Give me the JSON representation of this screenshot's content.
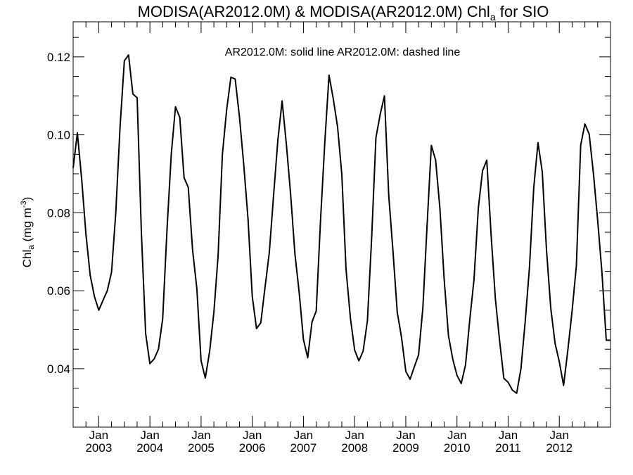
{
  "chart_data": {
    "type": "line",
    "title": {
      "prefix": "MODISA(AR2012.0M) & MODISA(AR2012.0M)  Chl",
      "sub": "a",
      "suffix": " for SIO"
    },
    "annotation": "AR2012.0M: solid line   AR2012.0M: dashed line",
    "ylabel": {
      "main": "Chl",
      "sub": "a",
      "unit_prefix": " (mg m",
      "unit_sup": "-3",
      "unit_suffix": ")"
    },
    "xlabel": "",
    "ylim": [
      0.025,
      0.129
    ],
    "xlim": [
      2002.5,
      2013.0
    ],
    "y_ticks": [
      0.04,
      0.06,
      0.08,
      0.1,
      0.12
    ],
    "y_tick_labels": [
      "0.04",
      "0.06",
      "0.08",
      "0.10",
      "0.12"
    ],
    "x_ticks": [
      2003,
      2004,
      2005,
      2006,
      2007,
      2008,
      2009,
      2010,
      2011,
      2012
    ],
    "x_tick_month": "Jan",
    "x_tick_years": [
      "2003",
      "2004",
      "2005",
      "2006",
      "2007",
      "2008",
      "2009",
      "2010",
      "2011",
      "2012"
    ],
    "grid": false,
    "series": [
      {
        "style": "solid",
        "x": [
          2002.5,
          2002.583,
          2002.667,
          2002.75,
          2002.833,
          2002.917,
          2003.0,
          2003.083,
          2003.167,
          2003.25,
          2003.333,
          2003.417,
          2003.5,
          2003.583,
          2003.667,
          2003.75,
          2003.833,
          2003.917,
          2004.0,
          2004.083,
          2004.167,
          2004.25,
          2004.333,
          2004.417,
          2004.5,
          2004.583,
          2004.667,
          2004.75,
          2004.833,
          2004.917,
          2005.0,
          2005.083,
          2005.167,
          2005.25,
          2005.333,
          2005.417,
          2005.5,
          2005.583,
          2005.667,
          2005.75,
          2005.833,
          2005.917,
          2006.0,
          2006.083,
          2006.167,
          2006.25,
          2006.333,
          2006.417,
          2006.5,
          2006.583,
          2006.667,
          2006.75,
          2006.833,
          2006.917,
          2007.0,
          2007.083,
          2007.167,
          2007.25,
          2007.333,
          2007.417,
          2007.5,
          2007.583,
          2007.667,
          2007.75,
          2007.833,
          2007.917,
          2008.0,
          2008.083,
          2008.167,
          2008.25,
          2008.333,
          2008.417,
          2008.5,
          2008.583,
          2008.667,
          2008.75,
          2008.833,
          2008.917,
          2009.0,
          2009.083,
          2009.167,
          2009.25,
          2009.333,
          2009.417,
          2009.5,
          2009.583,
          2009.667,
          2009.75,
          2009.833,
          2009.917,
          2010.0,
          2010.083,
          2010.167,
          2010.25,
          2010.333,
          2010.417,
          2010.5,
          2010.583,
          2010.667,
          2010.75,
          2010.833,
          2010.917,
          2011.0,
          2011.083,
          2011.167,
          2011.25,
          2011.333,
          2011.417,
          2011.5,
          2011.583,
          2011.667,
          2011.75,
          2011.833,
          2011.917,
          2012.0,
          2012.083,
          2012.167,
          2012.25,
          2012.333,
          2012.417,
          2012.5,
          2012.583,
          2012.667,
          2012.75,
          2012.833,
          2012.917,
          2013.0
        ],
        "values": [
          0.0915,
          0.1005,
          0.0885,
          0.0745,
          0.064,
          0.0585,
          0.055,
          0.0575,
          0.06,
          0.0648,
          0.08,
          0.102,
          0.119,
          0.1205,
          0.1105,
          0.1095,
          0.075,
          0.049,
          0.0413,
          0.0425,
          0.045,
          0.0528,
          0.0755,
          0.095,
          0.1072,
          0.1045,
          0.089,
          0.0865,
          0.0705,
          0.0605,
          0.042,
          0.0376,
          0.0445,
          0.0545,
          0.069,
          0.095,
          0.1065,
          0.1148,
          0.1143,
          0.1045,
          0.0925,
          0.0785,
          0.0585,
          0.0503,
          0.0518,
          0.061,
          0.0698,
          0.0845,
          0.0985,
          0.1087,
          0.0975,
          0.0848,
          0.0695,
          0.0595,
          0.0475,
          0.0428,
          0.052,
          0.0548,
          0.078,
          0.098,
          0.1153,
          0.1093,
          0.102,
          0.0898,
          0.0655,
          0.053,
          0.0448,
          0.042,
          0.0445,
          0.0523,
          0.0735,
          0.0993,
          0.1053,
          0.11,
          0.0845,
          0.07,
          0.0545,
          0.048,
          0.0393,
          0.0373,
          0.0405,
          0.0435,
          0.0555,
          0.077,
          0.0973,
          0.0935,
          0.081,
          0.063,
          0.0485,
          0.0425,
          0.0383,
          0.0362,
          0.041,
          0.0525,
          0.0628,
          0.0812,
          0.0908,
          0.0935,
          0.0745,
          0.058,
          0.0472,
          0.0375,
          0.0365,
          0.0345,
          0.0337,
          0.04,
          0.052,
          0.066,
          0.0865,
          0.098,
          0.0905,
          0.0705,
          0.0555,
          0.0465,
          0.0418,
          0.0357,
          0.0448,
          0.0548,
          0.0665,
          0.0973,
          0.1028,
          0.1002,
          0.09,
          0.078,
          0.0648,
          0.0473,
          0.0473
        ]
      }
    ]
  }
}
